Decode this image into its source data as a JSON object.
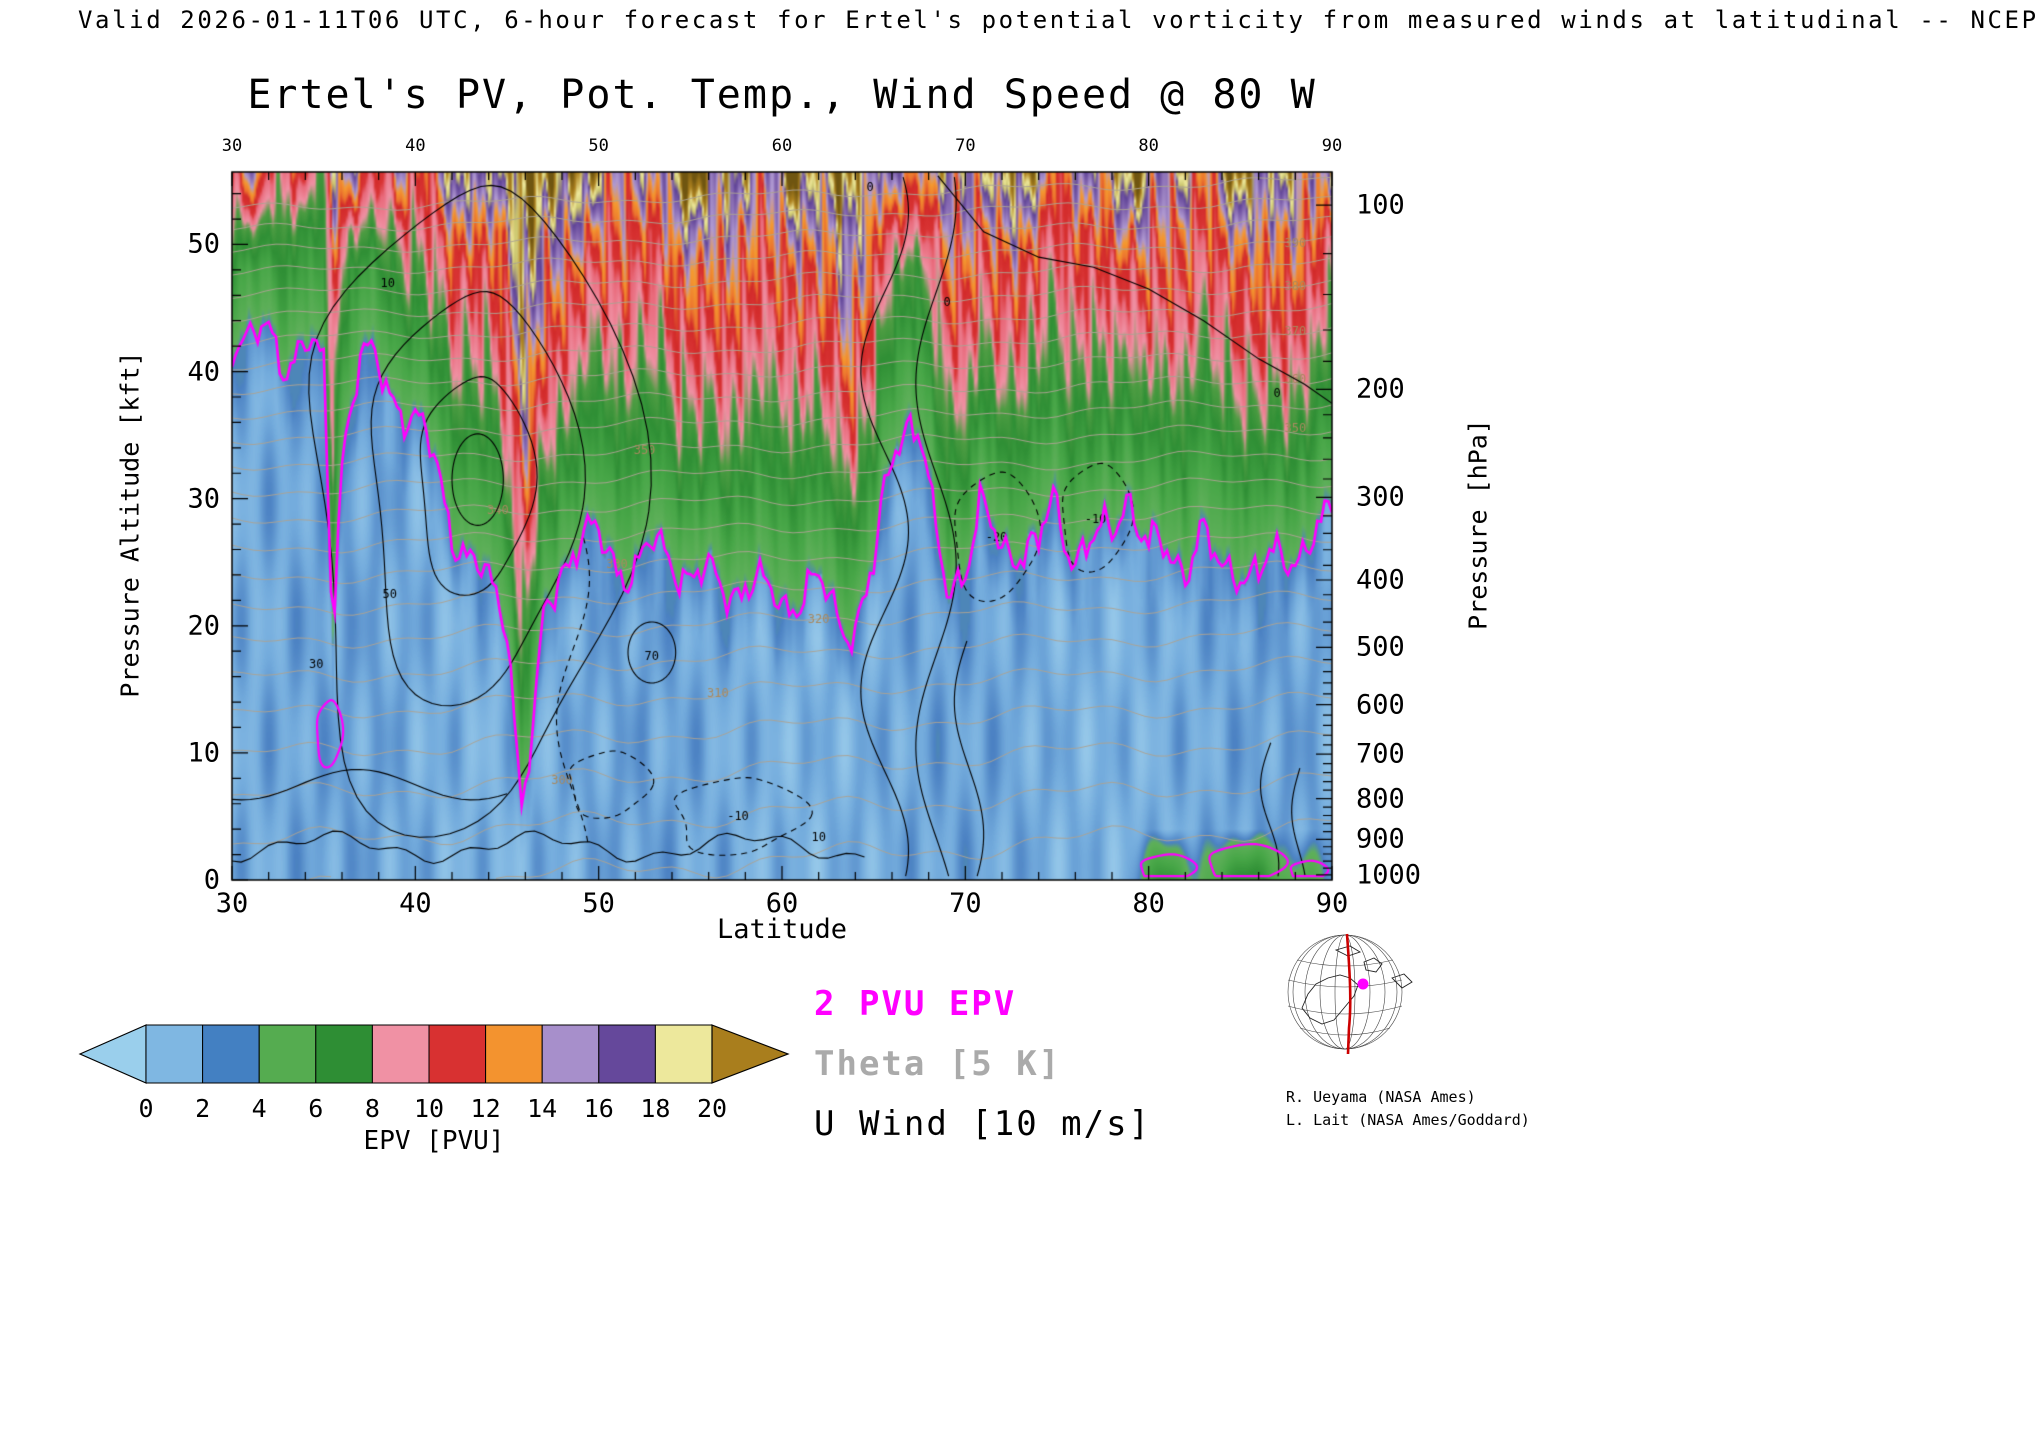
{
  "annotation": "Valid 2026-01-11T06 UTC, 6-hour forecast for Ertel's potential vorticity from measured winds at latitudinal -- NCEP",
  "title": "Ertel's PV, Pot. Temp., Wind Speed @ 80 W",
  "axes": {
    "x": {
      "label": "Latitude",
      "min": 30,
      "max": 90,
      "ticks": [
        30,
        40,
        50,
        60,
        70,
        80,
        90
      ],
      "minor_step": 2
    },
    "y_left": {
      "label": "Pressure Altitude [kft]",
      "ticks": [
        0,
        10,
        20,
        30,
        40,
        50
      ],
      "max_kft": 55.7,
      "minor_step": 2
    },
    "y_right": {
      "label": "Pressure [hPa]",
      "ticks": [
        [
          100,
          53.1
        ],
        [
          200,
          38.6
        ],
        [
          300,
          30.1
        ],
        [
          400,
          23.6
        ],
        [
          500,
          18.3
        ],
        [
          600,
          13.8
        ],
        [
          700,
          9.9
        ],
        [
          800,
          6.4
        ],
        [
          900,
          3.2
        ],
        [
          1000,
          0.4
        ]
      ]
    }
  },
  "colorbar": {
    "label": "EPV [PVU]",
    "ticks": [
      0,
      2,
      4,
      6,
      8,
      10,
      12,
      14,
      16,
      18,
      20
    ],
    "colors": [
      "#9ACFEC",
      "#7FB7E2",
      "#4380C2",
      "#55AC50",
      "#2E8E34",
      "#F091A4",
      "#D83131",
      "#F3932F",
      "#A78FCB",
      "#65489B",
      "#EDE89C",
      "#A97E1D"
    ]
  },
  "legend": [
    {
      "label": "2 PVU EPV",
      "color": "#FF00FF"
    },
    {
      "label": "Theta [5 K]",
      "color": "#AAAAAA"
    },
    {
      "label": "U Wind [10 m/s]",
      "color": "#000000"
    }
  ],
  "credits": [
    "R. Ueyama (NASA Ames)",
    "L. Lait (NASA Ames/Goddard)"
  ],
  "chart_data": {
    "type": "heatmap",
    "subtype": "latitude-altitude filled-contour cross section at 80W",
    "x": {
      "name": "Latitude",
      "min": 30,
      "max": 90,
      "ticks": [
        30,
        40,
        50,
        60,
        70,
        80,
        90
      ]
    },
    "y": {
      "name": "Pressure Altitude [kft]",
      "min": 0,
      "max": 55.7,
      "ticks": [
        0,
        10,
        20,
        30,
        40,
        50
      ]
    },
    "y2": {
      "name": "Pressure [hPa]",
      "ticks": [
        [
          100,
          53.1
        ],
        [
          200,
          38.6
        ],
        [
          300,
          30.1
        ],
        [
          400,
          23.6
        ],
        [
          500,
          18.3
        ],
        [
          600,
          13.8
        ],
        [
          700,
          9.9
        ],
        [
          800,
          6.4
        ],
        [
          900,
          3.2
        ],
        [
          1000,
          0.4
        ]
      ]
    },
    "fill_field": {
      "name": "EPV",
      "units": "PVU",
      "levels": [
        0,
        2,
        4,
        6,
        8,
        10,
        12,
        14,
        16,
        18,
        20
      ]
    },
    "colormap_stops": [
      [
        -1.5,
        "#BEE6F6"
      ],
      [
        0,
        "#97C9EA"
      ],
      [
        1,
        "#74ACDD"
      ],
      [
        1.9,
        "#4B81C3"
      ],
      [
        2.4,
        "#5FB05A"
      ],
      [
        4,
        "#48A748"
      ],
      [
        6,
        "#2F8F35"
      ],
      [
        7.5,
        "#4E9D43"
      ],
      [
        8.5,
        "#F091A4"
      ],
      [
        10,
        "#E96A7B"
      ],
      [
        10.6,
        "#D93434"
      ],
      [
        12,
        "#D22A2A"
      ],
      [
        12.7,
        "#EC742E"
      ],
      [
        13.8,
        "#F59A2F"
      ],
      [
        14.8,
        "#B09AD2"
      ],
      [
        16.2,
        "#8568B1"
      ],
      [
        17.6,
        "#5F4397"
      ],
      [
        18.5,
        "#CBC66E"
      ],
      [
        19.4,
        "#EFEA9E"
      ],
      [
        20.6,
        "#AF8320"
      ],
      [
        23,
        "#6F5510"
      ]
    ],
    "tropopause_2pvu": {
      "lat": [
        30,
        31,
        32,
        33,
        34,
        35,
        35.5,
        36,
        37,
        38,
        39,
        40,
        41,
        42,
        43,
        44,
        45,
        45.8,
        46.5,
        47,
        48,
        49,
        50,
        51,
        52,
        53,
        54,
        55,
        56,
        57,
        58,
        59,
        60,
        61,
        62,
        63,
        64,
        65,
        65.7,
        66.3,
        67,
        67.7,
        68.3,
        69,
        70,
        70.8,
        71.5,
        72,
        73,
        74,
        74.8,
        75.5,
        76,
        77,
        78,
        78.8,
        79.5,
        80,
        81,
        82,
        82.8,
        83.5,
        84,
        85,
        86,
        87,
        88,
        89,
        90
      ],
      "alt_kft": [
        43,
        42,
        43,
        41,
        42,
        40,
        20,
        34,
        41,
        40,
        38,
        36,
        33,
        28,
        25,
        23,
        21,
        6,
        12,
        20,
        25,
        27,
        26.5,
        25,
        24.5,
        26,
        25.5,
        24,
        23.5,
        23,
        23.5,
        22.5,
        22,
        22.5,
        23,
        21,
        20,
        24,
        31,
        35.5,
        36.5,
        34,
        27,
        23,
        25,
        29,
        27,
        26,
        26.5,
        26,
        29.5,
        27,
        26,
        26.5,
        27,
        31,
        28,
        26,
        25.5,
        25,
        27.5,
        25,
        24,
        25,
        24,
        25,
        26,
        27,
        28
      ]
    },
    "theta_contours": {
      "interval_K": 5,
      "label_points": [
        {
          "v": 390,
          "lat": 88
        },
        {
          "v": 380,
          "lat": 88
        },
        {
          "v": 370,
          "lat": 88
        },
        {
          "v": 360,
          "lat": 88
        },
        {
          "v": 350,
          "lat": 88
        },
        {
          "v": 350,
          "lat": 52.5
        },
        {
          "v": 340,
          "lat": 44.5
        },
        {
          "v": 330,
          "lat": 51
        },
        {
          "v": 320,
          "lat": 62
        },
        {
          "v": 310,
          "lat": 56.5
        },
        {
          "v": 300,
          "lat": 48
        }
      ]
    },
    "wind_contours": {
      "interval_mps": 10,
      "label_points": [
        {
          "v": 50,
          "lat": 38.6,
          "kft": 22.5
        },
        {
          "v": 30,
          "lat": 34.6,
          "kft": 17
        },
        {
          "v": 10,
          "lat": 38.5,
          "kft": 47
        },
        {
          "v": 10,
          "lat": 62,
          "kft": 3.4
        },
        {
          "v": 70,
          "lat": 52.9,
          "kft": 17.6
        },
        {
          "v": 0,
          "lat": 69,
          "kft": 45.5
        },
        {
          "v": 0,
          "lat": 87,
          "kft": 38.3
        },
        {
          "v": 0,
          "lat": 64.8,
          "kft": 54.5
        },
        {
          "v": -10,
          "lat": 57.6,
          "kft": 5
        },
        {
          "v": -20,
          "lat": 71.7,
          "kft": 27
        },
        {
          "v": -10,
          "lat": 77.1,
          "kft": 28.4
        }
      ]
    },
    "jet_core": {
      "lat": 43,
      "alt_kft": 31
    },
    "surface_pv_features": [
      {
        "lat": 81,
        "kft": 0.9,
        "rl": 1.5,
        "rz": 1.1
      },
      {
        "lat": 85.3,
        "kft": 1.3,
        "rl": 2.1,
        "rz": 1.5
      },
      {
        "lat": 88.7,
        "kft": 0.7,
        "rl": 1.0,
        "rz": 0.8
      },
      {
        "lat": 35.3,
        "kft": 11.5,
        "rl": 0.7,
        "rz": 2.6
      }
    ]
  }
}
